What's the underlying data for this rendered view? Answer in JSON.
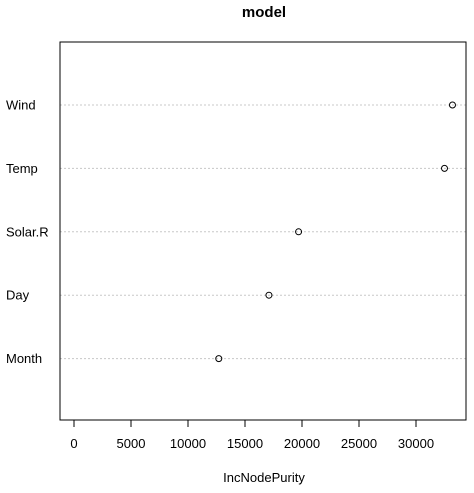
{
  "chart_data": {
    "type": "scatter",
    "title": "model",
    "xlabel": "IncNodePurity",
    "ylabel": "",
    "xlim": [
      0,
      33500
    ],
    "x_ticks": [
      0,
      5000,
      10000,
      15000,
      20000,
      25000,
      30000
    ],
    "x_tick_labels": [
      "0",
      "5000",
      "10000",
      "15000",
      "20000",
      "25000",
      "30000"
    ],
    "categories": [
      "Wind",
      "Temp",
      "Solar.R",
      "Day",
      "Month"
    ],
    "values": [
      33200,
      32500,
      19700,
      17100,
      12700
    ],
    "grid": "dotted horizontal guides per category"
  }
}
